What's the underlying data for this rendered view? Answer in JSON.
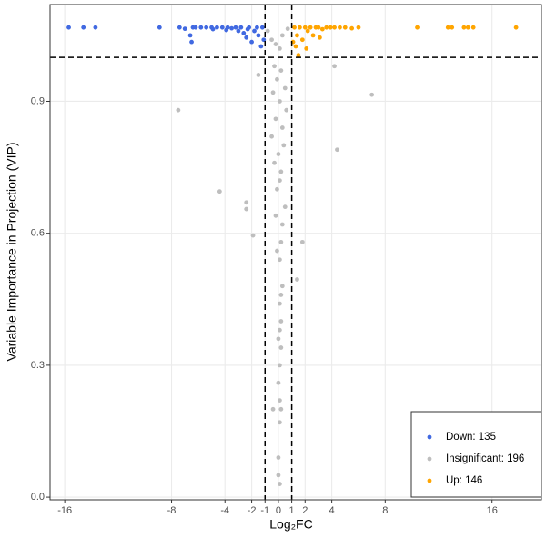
{
  "chart_data": {
    "type": "scatter",
    "x_label": "Log₂FC",
    "y_label": "Variable Importance in Projection (VIP)",
    "xlim": [
      -17.1,
      19.7
    ],
    "ylim": [
      -0.006,
      1.12
    ],
    "xticks": [
      -16,
      -8,
      -4,
      -2,
      -1,
      0,
      1,
      2,
      4,
      8,
      16
    ],
    "yticks": [
      {
        "value": 0,
        "label": "0.0"
      },
      0.3,
      0.6,
      0.9
    ],
    "grid": true,
    "vlines": [
      -1,
      1
    ],
    "hline": 1,
    "legend_position": "bottom-right",
    "series": [
      {
        "name": "Down: 135",
        "color": "#4169e1",
        "x": [
          -15.7,
          -14.6,
          -13.7,
          -8.9,
          -7.4,
          -7.0,
          -6.6,
          -6.4,
          -6.2,
          -6.5,
          -5.8,
          -5.4,
          -5.0,
          -4.6,
          -4.2,
          -3.8,
          -3.5,
          -3.2,
          -3.0,
          -2.8,
          -2.6,
          -2.4,
          -2.2,
          -2.0,
          -1.8,
          -1.6,
          -1.5,
          -1.3,
          -1.2,
          -1.1,
          -2.3,
          -4.9,
          -3.9
        ],
        "values": [
          1.068,
          1.068,
          1.068,
          1.068,
          1.068,
          1.065,
          1.05,
          1.068,
          1.068,
          1.035,
          1.068,
          1.068,
          1.068,
          1.068,
          1.068,
          1.068,
          1.066,
          1.068,
          1.06,
          1.068,
          1.055,
          1.045,
          1.068,
          1.035,
          1.06,
          1.068,
          1.05,
          1.025,
          1.068,
          1.04,
          1.064,
          1.064,
          1.062
        ]
      },
      {
        "name": "Insignificant: 196",
        "color": "#bebebe",
        "x": [
          -0.8,
          -0.5,
          0.3,
          0.7,
          0.1,
          -0.2,
          -0.3,
          0.2,
          -0.1,
          0.5,
          -0.4,
          0.1,
          0.6,
          -0.2,
          0.3,
          -0.5,
          0.4,
          0.0,
          -0.3,
          0.2,
          0.1,
          -0.1,
          0.5,
          -0.2,
          0.3,
          0.2,
          -0.1,
          0.1,
          0.3,
          0.2,
          0.1,
          0.2,
          0.1,
          0.0,
          0.2,
          0.1,
          0.0,
          0.1,
          0.2,
          0.1,
          0.0,
          0.0,
          0.1,
          -7.5,
          -4.4,
          -2.4,
          -2.4,
          -1.9,
          4.2,
          7.0,
          4.4,
          1.8,
          1.4,
          -1.5,
          -0.4
        ],
        "values": [
          1.06,
          1.04,
          1.05,
          1.065,
          1.02,
          1.03,
          0.98,
          0.97,
          0.95,
          0.93,
          0.92,
          0.9,
          0.88,
          0.86,
          0.84,
          0.82,
          0.8,
          0.78,
          0.76,
          0.74,
          0.72,
          0.7,
          0.66,
          0.64,
          0.62,
          0.58,
          0.56,
          0.54,
          0.48,
          0.46,
          0.44,
          0.4,
          0.38,
          0.36,
          0.34,
          0.3,
          0.26,
          0.22,
          0.2,
          0.17,
          0.09,
          0.05,
          0.03,
          0.88,
          0.695,
          0.67,
          0.655,
          0.595,
          0.98,
          0.915,
          0.79,
          0.58,
          0.495,
          0.96,
          0.2
        ]
      },
      {
        "name": "Up: 146",
        "color": "#ffa500",
        "x": [
          1.2,
          1.4,
          1.6,
          1.8,
          2.0,
          2.2,
          2.4,
          2.6,
          2.8,
          3.0,
          3.3,
          3.6,
          3.9,
          4.2,
          4.6,
          5.0,
          5.5,
          6.0,
          1.3,
          1.5,
          2.1,
          1.1,
          10.4,
          12.7,
          13.0,
          13.9,
          14.2,
          14.6,
          17.8,
          3.1
        ],
        "values": [
          1.068,
          1.05,
          1.068,
          1.04,
          1.068,
          1.06,
          1.068,
          1.05,
          1.068,
          1.068,
          1.064,
          1.068,
          1.068,
          1.068,
          1.068,
          1.068,
          1.066,
          1.068,
          1.025,
          1.005,
          1.02,
          1.035,
          1.068,
          1.068,
          1.068,
          1.068,
          1.068,
          1.068,
          1.068,
          1.045
        ]
      }
    ]
  }
}
